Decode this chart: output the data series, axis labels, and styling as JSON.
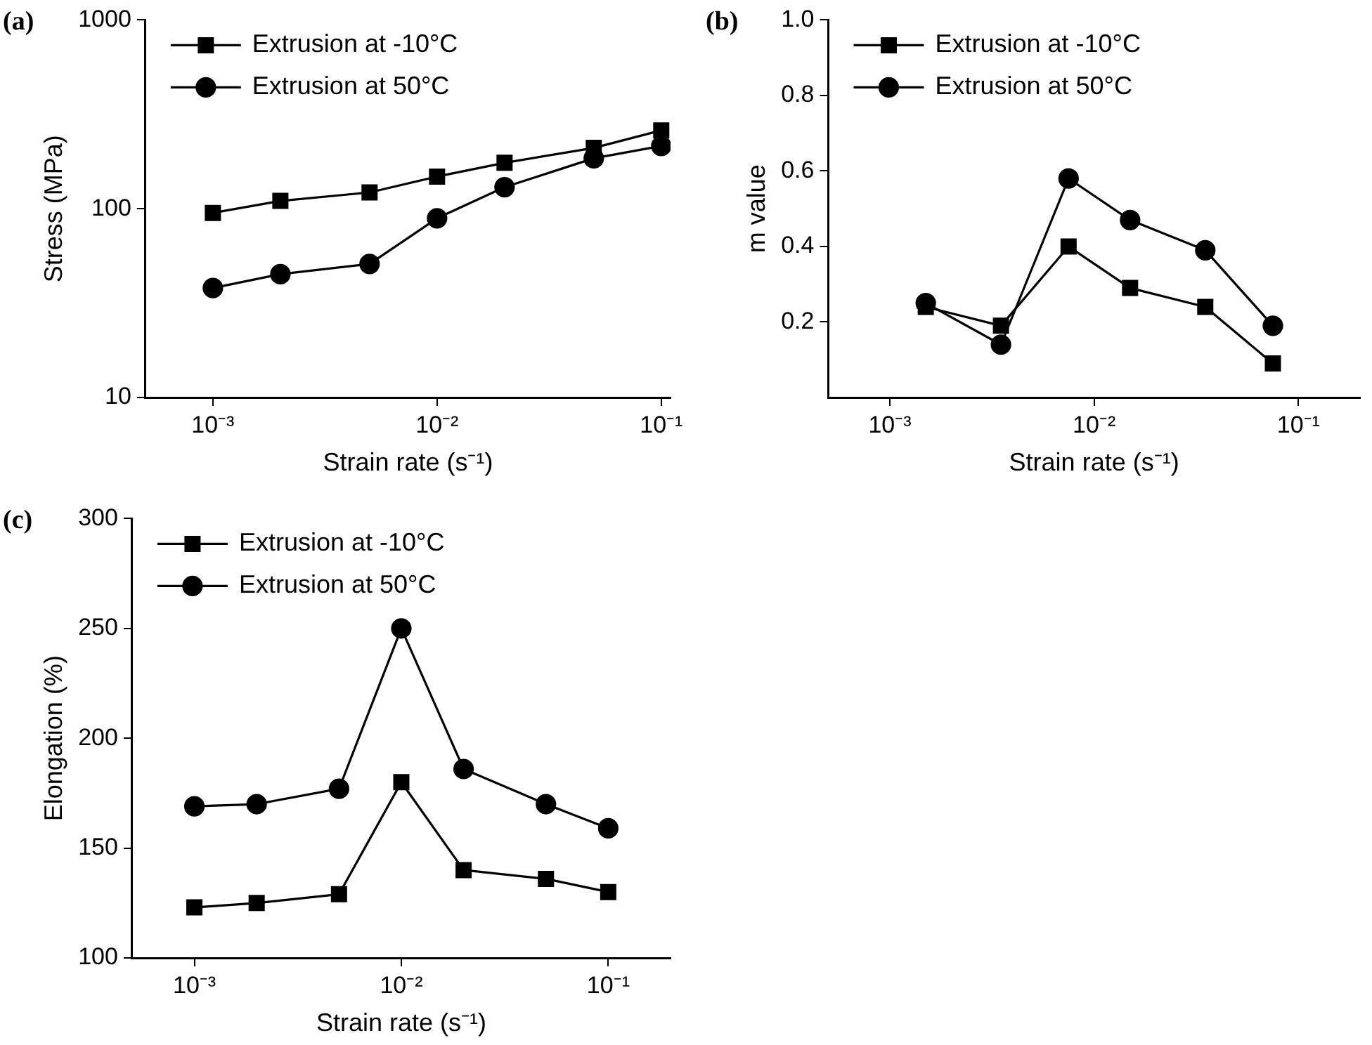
{
  "chart_data": [
    {
      "type": "line",
      "title": "(a)",
      "xlabel": "Strain rate (s⁻¹)",
      "ylabel": "Stress (MPa)",
      "log": "xy",
      "legend": "top left",
      "line_style": "solid",
      "x": [
        0.001,
        0.002,
        0.005,
        0.01,
        0.02,
        0.05,
        0.1
      ],
      "series": [
        {
          "name": "Extrusion at -10°C",
          "color": "#000000",
          "marker": "square",
          "values": [
            95,
            110,
            122,
            148,
            175,
            210,
            260
          ]
        },
        {
          "name": "Extrusion at 50°C",
          "color": "#000000",
          "marker": "circle",
          "values": [
            38,
            45,
            51,
            89,
            130,
            185,
            215
          ]
        }
      ],
      "xlim": [
        0.0005,
        0.11
      ],
      "xticks": [
        {
          "value": 0.001,
          "label": "10⁻³"
        },
        {
          "value": 0.01,
          "label": "10⁻²"
        },
        {
          "value": 0.1,
          "label": "10⁻¹"
        }
      ],
      "ylim": [
        10,
        1000
      ],
      "yticks": [
        10,
        100,
        1000
      ]
    },
    {
      "type": "line",
      "title": "(b)",
      "xlabel": "Strain rate (s⁻¹)",
      "ylabel": "m value",
      "log": "x",
      "legend": "top left",
      "line_style": "solid",
      "x": [
        0.0015,
        0.0035,
        0.0075,
        0.015,
        0.035,
        0.075
      ],
      "series": [
        {
          "name": "Extrusion at -10°C",
          "color": "#000000",
          "marker": "square",
          "values": [
            0.24,
            0.19,
            0.4,
            0.29,
            0.24,
            0.09
          ]
        },
        {
          "name": "Extrusion at 50°C",
          "color": "#000000",
          "marker": "circle",
          "values": [
            0.25,
            0.14,
            0.58,
            0.47,
            0.39,
            0.19
          ]
        }
      ],
      "xlim": [
        0.0005,
        0.2
      ],
      "xticks": [
        {
          "value": 0.001,
          "label": "10⁻³"
        },
        {
          "value": 0.01,
          "label": "10⁻²"
        },
        {
          "value": 0.1,
          "label": "10⁻¹"
        }
      ],
      "ylim": [
        0,
        1
      ],
      "yticks": [
        0.2,
        0.4,
        0.6,
        0.8,
        {
          "value": 1,
          "label": "1.0"
        }
      ]
    },
    {
      "type": "line",
      "title": "(c)",
      "xlabel": "Strain rate (s⁻¹)",
      "ylabel": "Elongation (%)",
      "log": "x",
      "legend": "top left",
      "line_style": "solid",
      "x": [
        0.001,
        0.002,
        0.005,
        0.01,
        0.02,
        0.05,
        0.1
      ],
      "series": [
        {
          "name": "Extrusion at -10°C",
          "color": "#000000",
          "marker": "square",
          "values": [
            123,
            125,
            129,
            180,
            140,
            136,
            130
          ]
        },
        {
          "name": "Extrusion at 50°C",
          "color": "#000000",
          "marker": "circle",
          "values": [
            169,
            170,
            177,
            250,
            186,
            170,
            159
          ]
        }
      ],
      "xlim": [
        0.0005,
        0.2
      ],
      "xticks": [
        {
          "value": 0.001,
          "label": "10⁻³"
        },
        {
          "value": 0.01,
          "label": "10⁻²"
        },
        {
          "value": 0.1,
          "label": "10⁻¹"
        }
      ],
      "ylim": [
        100,
        300
      ],
      "yticks": [
        100,
        150,
        200,
        250,
        300
      ]
    }
  ]
}
